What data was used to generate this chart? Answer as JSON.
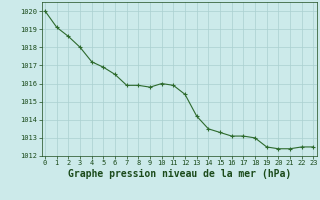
{
  "x": [
    0,
    1,
    2,
    3,
    4,
    5,
    6,
    7,
    8,
    9,
    10,
    11,
    12,
    13,
    14,
    15,
    16,
    17,
    18,
    19,
    20,
    21,
    22,
    23
  ],
  "y": [
    1020.0,
    1019.1,
    1018.6,
    1018.0,
    1017.2,
    1016.9,
    1016.5,
    1015.9,
    1015.9,
    1015.8,
    1016.0,
    1015.9,
    1015.4,
    1014.2,
    1013.5,
    1013.3,
    1013.1,
    1013.1,
    1013.0,
    1012.5,
    1012.4,
    1012.4,
    1012.5,
    1012.5
  ],
  "ylim": [
    1012,
    1020.5
  ],
  "yticks": [
    1012,
    1013,
    1014,
    1015,
    1016,
    1017,
    1018,
    1019,
    1020
  ],
  "xticks": [
    0,
    1,
    2,
    3,
    4,
    5,
    6,
    7,
    8,
    9,
    10,
    11,
    12,
    13,
    14,
    15,
    16,
    17,
    18,
    19,
    20,
    21,
    22,
    23
  ],
  "xlabel": "Graphe pression niveau de la mer (hPa)",
  "line_color": "#2d6a2d",
  "marker": "+",
  "marker_color": "#2d6a2d",
  "bg_color": "#cceaea",
  "grid_color": "#aad0d0",
  "tick_label_color": "#1a4a1a",
  "xlabel_color": "#1a4a1a",
  "tick_fontsize": 5.0,
  "xlabel_fontsize": 7.0,
  "linewidth": 0.8,
  "markersize": 3.5
}
